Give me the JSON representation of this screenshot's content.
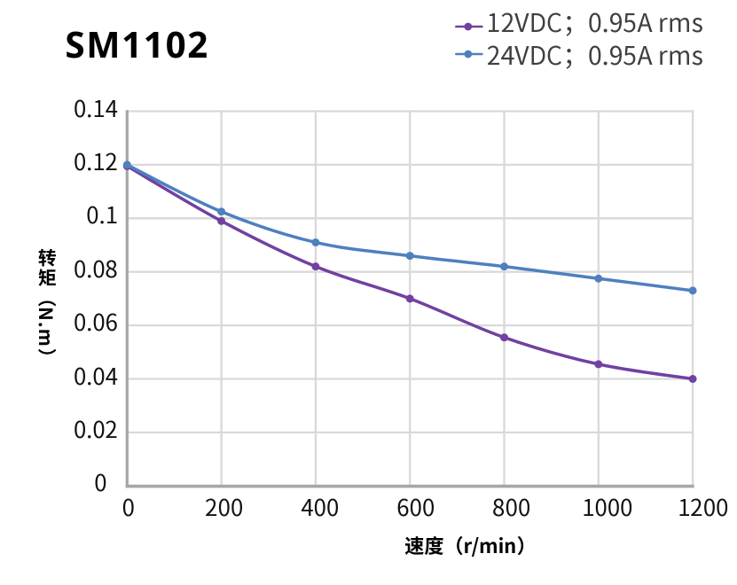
{
  "chart": {
    "title": "SM1102",
    "x_axis_title": "速度（r/min）",
    "y_axis_title": "转矩（N.m）",
    "x_tick_labels": [
      "0",
      "200",
      "400",
      "600",
      "800",
      "1000",
      "1200"
    ],
    "y_tick_labels": [
      "0",
      "0.02",
      "0.04",
      "0.06",
      "0.08",
      "0.1",
      "0.12",
      "0.14"
    ]
  },
  "legend": {
    "items": [
      {
        "label": "12VDC；0.95A rms",
        "color": "#7141A1"
      },
      {
        "label": "24VDC；0.95A rms",
        "color": "#4E80BE"
      }
    ]
  },
  "chart_data": {
    "type": "line",
    "x": [
      0,
      200,
      400,
      600,
      800,
      1000,
      1200
    ],
    "series": [
      {
        "name": "12VDC；0.95A rms",
        "color": "#7141A1",
        "values": [
          0.1195,
          0.099,
          0.082,
          0.07,
          0.0555,
          0.0455,
          0.04
        ]
      },
      {
        "name": "24VDC；0.95A rms",
        "color": "#4E80BE",
        "values": [
          0.12,
          0.1025,
          0.091,
          0.086,
          0.082,
          0.0775,
          0.073
        ]
      }
    ],
    "title": "SM1102",
    "xlabel": "速度（r/min）",
    "ylabel": "转矩（N.m）",
    "xlim": [
      0,
      1200
    ],
    "ylim": [
      0,
      0.14
    ],
    "x_ticks": [
      0,
      200,
      400,
      600,
      800,
      1000,
      1200
    ],
    "y_ticks": [
      0,
      0.02,
      0.04,
      0.06,
      0.08,
      0.1,
      0.12,
      0.14
    ],
    "grid": true,
    "legend_position": "top-right",
    "grid_color": "#D9D9D9",
    "axis_color": "#A6A6A6",
    "marker": "circle"
  }
}
